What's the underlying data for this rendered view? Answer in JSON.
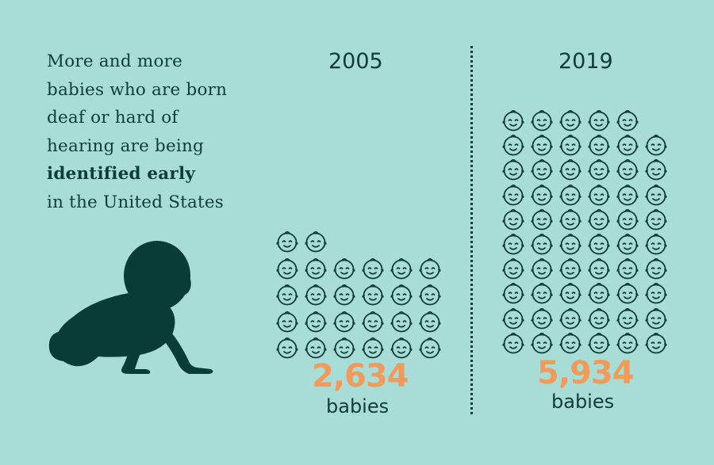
{
  "intro": {
    "line1": "More and more",
    "line2": "babies who are born",
    "line3": "deaf or hard of",
    "line4": "hearing are being",
    "line5_bold": "identified early",
    "line6": "in the United States"
  },
  "years": [
    {
      "label": "2005",
      "count": "2,634",
      "unit": "babies",
      "icon_rows": [
        2,
        6,
        6,
        6,
        6
      ]
    },
    {
      "label": "2019",
      "count": "5,934",
      "unit": "babies",
      "icon_rows": [
        5,
        6,
        6,
        6,
        6,
        6,
        6,
        6,
        6,
        6
      ]
    }
  ],
  "icons": {
    "face": "baby-face-icon",
    "silhouette": "crawling-baby-icon"
  },
  "colors": {
    "background": "#a8dcd7",
    "text": "#0d3b38",
    "accent": "#f29a5a"
  }
}
